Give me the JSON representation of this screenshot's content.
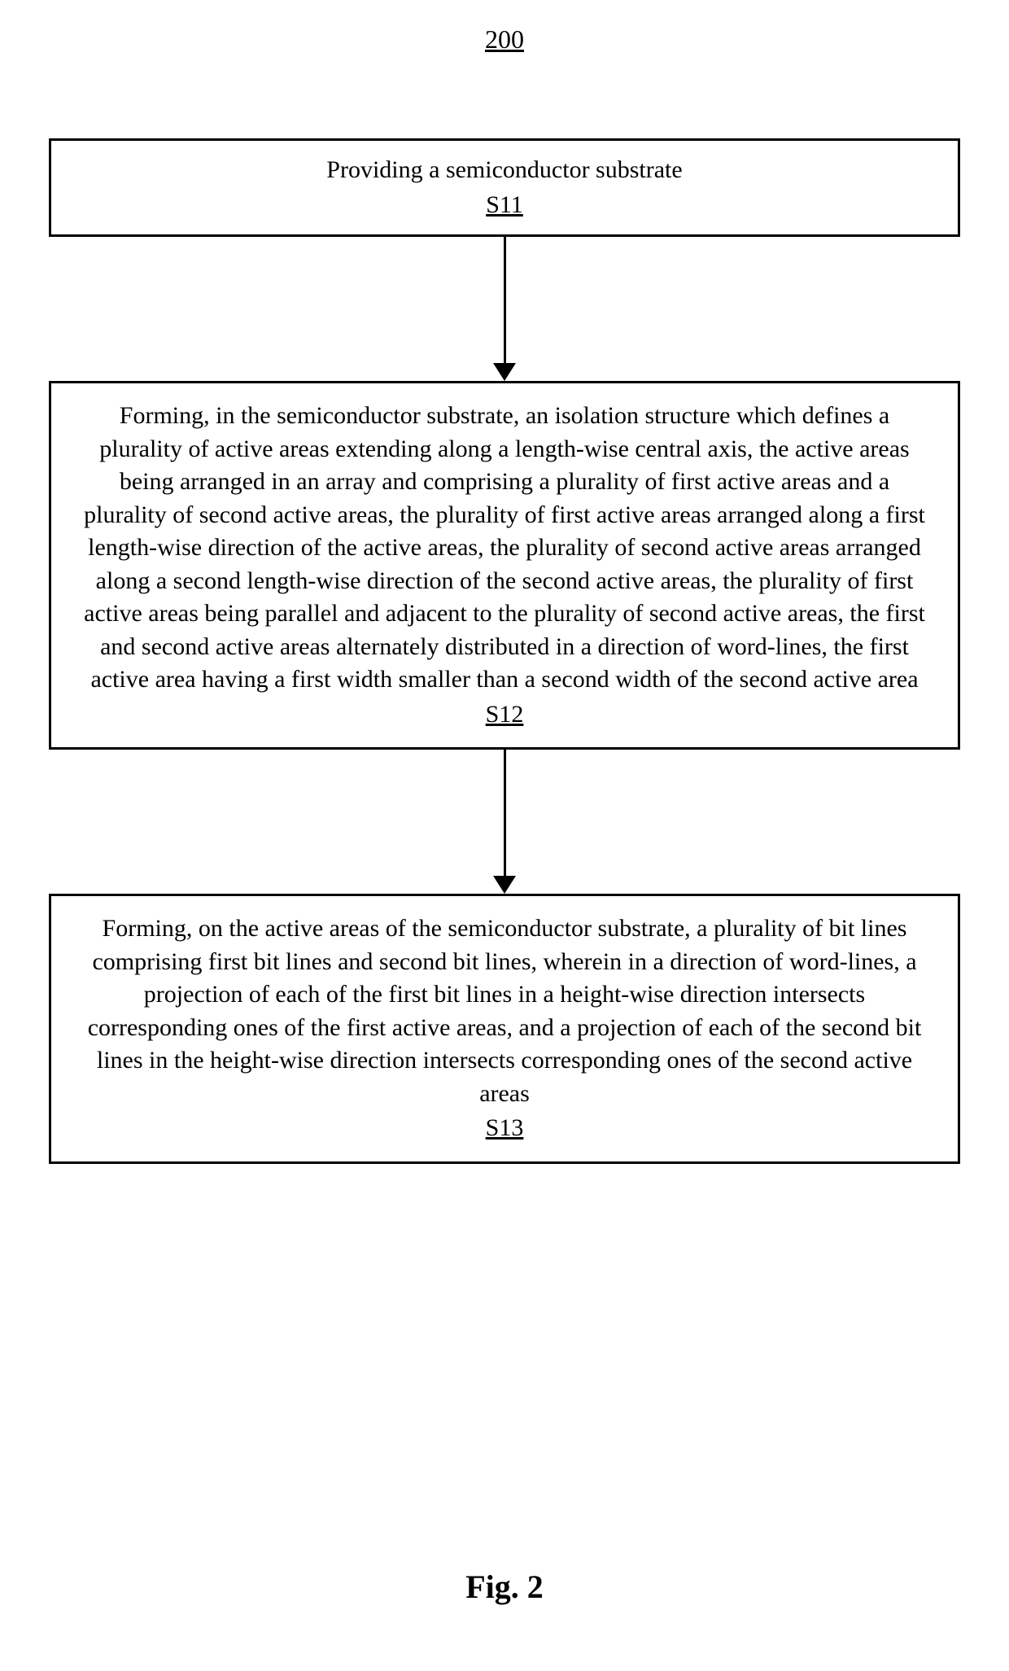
{
  "figure": {
    "number": "200",
    "caption": "Fig. 2"
  },
  "flowchart": {
    "type": "flowchart",
    "background_color": "#ffffff",
    "border_color": "#000000",
    "border_width": 3,
    "text_color": "#000000",
    "font_family": "Times New Roman",
    "node_fontsize": 30,
    "arrow": {
      "line_width": 3,
      "head_width": 28,
      "head_height": 22,
      "color": "#000000"
    },
    "steps": [
      {
        "id": "S11",
        "text": "Providing a semiconductor substrate",
        "box_height_class": "small",
        "arrow_after_height": 155
      },
      {
        "id": "S12",
        "text": "Forming, in the semiconductor substrate, an isolation structure which defines a plurality of active areas extending along a length-wise central axis, the active areas being arranged in an array and comprising a plurality of first active areas and a plurality of second active areas, the plurality of first active areas arranged along a first length-wise direction of the active areas, the plurality of second active areas arranged along a second length-wise direction of the second active areas, the plurality of first active areas being parallel and adjacent to the plurality of second active areas, the first and second active areas alternately distributed in a direction of word-lines, the first active area having a first width smaller than a second width of the second active area",
        "box_height_class": "large",
        "arrow_after_height": 155
      },
      {
        "id": "S13",
        "text": "Forming, on the active areas of the semiconductor substrate, a plurality of bit lines comprising first bit lines and second bit lines, wherein in a direction of word-lines, a projection of each of the first bit lines in a height-wise direction intersects corresponding ones of the first active areas, and a projection of each of the second bit lines in the height-wise direction intersects corresponding ones of the second active areas",
        "box_height_class": "large",
        "arrow_after_height": 0
      }
    ]
  }
}
